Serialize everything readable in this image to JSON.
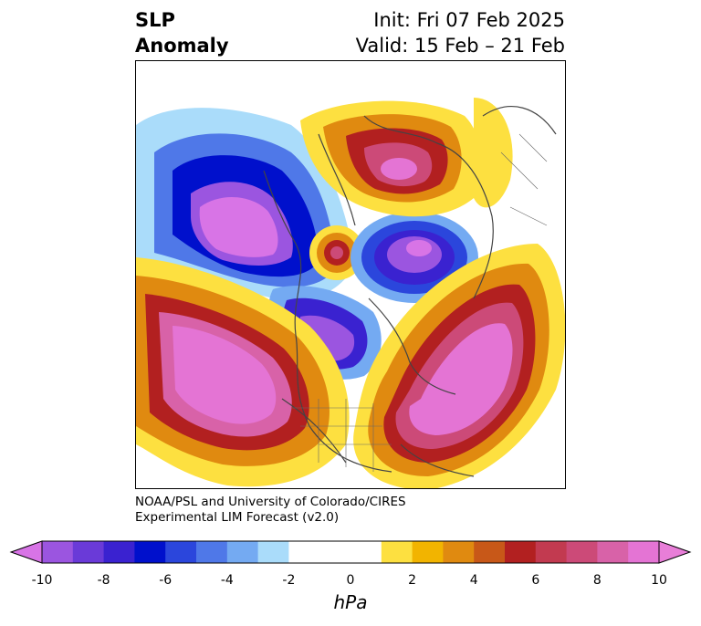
{
  "header": {
    "title_line1": "SLP",
    "title_line2": "Anomaly",
    "init": "Init: Fri 07 Feb 2025",
    "valid": "Valid: 15 Feb – 21 Feb"
  },
  "credit": {
    "line1": "NOAA/PSL and University of Colorado/CIRES",
    "line2": "Experimental LIM Forecast (v2.0)"
  },
  "colorbar": {
    "unit": "hPa",
    "ticks": [
      "-10",
      "-8",
      "-6",
      "-4",
      "-2",
      "0",
      "2",
      "4",
      "6",
      "8",
      "10"
    ],
    "levels": [
      -10,
      -9,
      -8,
      -7,
      -6,
      -5,
      -4,
      -3,
      -2,
      -1,
      1,
      2,
      3,
      4,
      5,
      6,
      7,
      8,
      9,
      10
    ],
    "colors": [
      "#9b55e0",
      "#6a3ad8",
      "#3a22d0",
      "#0010cc",
      "#2b46dc",
      "#4f78e8",
      "#74aaf2",
      "#aadcfa",
      "#ffffff",
      "#ffffff",
      "#fde040",
      "#f2b400",
      "#e08a10",
      "#c85818",
      "#b22020",
      "#c23a50",
      "#cc4a78",
      "#d862a8",
      "#e474d4"
    ],
    "extend_low_color": "#d874e6",
    "extend_high_color": "#e87ed8"
  },
  "map": {
    "projection": "polar-stereographic",
    "variable": "sea-level-pressure-anomaly",
    "features": [
      {
        "name": "north-pacific-low",
        "type": "negative",
        "peak": -10
      },
      {
        "name": "siberia-high",
        "type": "positive",
        "peak": 8
      },
      {
        "name": "east-arctic-low",
        "type": "negative",
        "peak": -8
      },
      {
        "name": "arctic-high-cell",
        "type": "positive",
        "peak": 6
      },
      {
        "name": "north-atlantic-high",
        "type": "positive",
        "peak": 10
      },
      {
        "name": "east-pacific-high",
        "type": "positive",
        "peak": 10
      },
      {
        "name": "canada-low",
        "type": "negative",
        "peak": -7
      }
    ]
  }
}
